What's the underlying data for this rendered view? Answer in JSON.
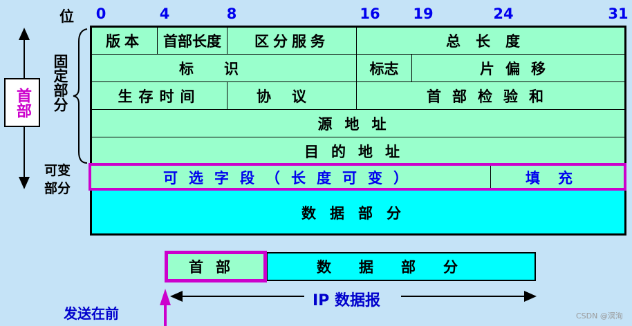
{
  "bit_axis": {
    "label": "位",
    "ticks": [
      "0",
      "4",
      "8",
      "16",
      "19",
      "24",
      "31"
    ]
  },
  "left_labels": {
    "header": "首部",
    "fixed": "固定部分",
    "variable": "可变部分"
  },
  "header_rows": {
    "row1": [
      "版本",
      "首部长度",
      "区分服务",
      "总长度"
    ],
    "row2": [
      "标识",
      "标志",
      "片偏移"
    ],
    "row3": [
      "生存时间",
      "协议",
      "首部检验和"
    ],
    "row4": [
      "源地址"
    ],
    "row5": [
      "目的地址"
    ],
    "options": [
      "可选字段（长度可变）",
      "填充"
    ]
  },
  "data_part": "数据部分",
  "datagram": {
    "header": "首部",
    "data": "数据部分",
    "label": "IP 数据报",
    "send_first": "发送在前"
  },
  "watermark": "CSDN @溟洵",
  "colors": {
    "header_fill": "#99ffcc",
    "data_fill": "#00ffff",
    "highlight": "#cc00cc",
    "blue_text": "#0000ee"
  }
}
